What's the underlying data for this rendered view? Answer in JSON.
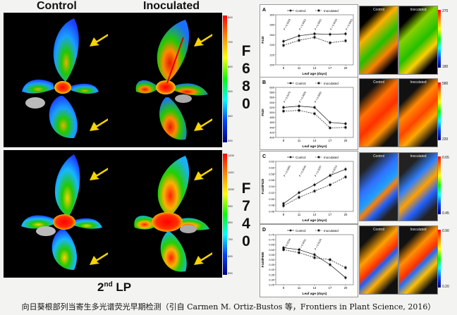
{
  "left": {
    "header_control": "Control",
    "header_inoculated": "Inoculated",
    "row1_label": [
      "F",
      "6",
      "8",
      "0"
    ],
    "row2_label": [
      "F",
      "7",
      "4",
      "0"
    ],
    "row1_ticks": [
      "800",
      "700",
      "600",
      "500",
      "400",
      "300"
    ],
    "row2_ticks": [
      "1200",
      "1100",
      "1000",
      "900",
      "800",
      "700",
      "600",
      "500"
    ],
    "footer_lp_base": "2",
    "footer_lp_sup": "nd",
    "footer_lp_rest": " LP"
  },
  "panels": [
    {
      "letter": "A",
      "ylabel": "F440",
      "xlabel": "Leaf age (days)",
      "yticks": [
        "300",
        "280",
        "260",
        "240",
        "220",
        "200"
      ],
      "xticks": [
        "8",
        "11",
        "14",
        "17",
        "20"
      ],
      "legend": [
        "Control",
        "Inoculated"
      ],
      "pvalues": [
        "P = 0.0029",
        "P = 0.0001",
        "P = 0.0001",
        "P = 0.0019",
        "P = 0.0001"
      ],
      "thumb_left": "Control",
      "thumb_right": "Inoculated",
      "cbar_top": "270",
      "cbar_bottom": "180"
    },
    {
      "letter": "B",
      "ylabel": "F520",
      "xlabel": "Leaf age (days)",
      "yticks": [
        "600",
        "580",
        "560",
        "540",
        "520",
        "500",
        "480",
        "460",
        "440",
        "420",
        "400"
      ],
      "xticks": [
        "8",
        "11",
        "14",
        "17",
        "20"
      ],
      "legend": [
        "Control",
        "Inoculated"
      ],
      "pvalues": [
        "P = 0.0476",
        "P = 0.0005",
        "P = 0.0062"
      ],
      "thumb_left": "Control",
      "thumb_right": "Inoculated",
      "cbar_top": "580",
      "cbar_bottom": "220"
    },
    {
      "letter": "C",
      "ylabel": "F440/F520",
      "xlabel": "Leaf age (days)",
      "yticks": [
        "0.62",
        "0.60",
        "0.58",
        "0.56",
        "0.54",
        "0.52",
        "0.50",
        "0.48",
        "0.46"
      ],
      "xticks": [
        "8",
        "11",
        "14",
        "17",
        "20"
      ],
      "legend": [
        "Control",
        "Inoculated"
      ],
      "pvalues": [
        "P = 0.0360",
        "P = 0.0040",
        "P = 0.0297",
        "P = 0.0213"
      ],
      "thumb_left": "Control",
      "thumb_right": "Inoculated",
      "cbar_top": "0.65",
      "cbar_bottom": "0.45"
    },
    {
      "letter": "D",
      "ylabel": "F440/F680",
      "xlabel": "Leaf age (days)",
      "yticks": [
        "0.75",
        "0.70",
        "0.65",
        "0.60",
        "0.55",
        "0.50",
        "0.45",
        "0.40",
        "0.35",
        "0.30",
        "0.25"
      ],
      "xticks": [
        "8",
        "11",
        "14",
        "17",
        "20"
      ],
      "legend": [
        "Control",
        "Inoculated"
      ],
      "pvalues": [
        "P = 0.0218",
        "P = 0.0011",
        "P = 0.0120"
      ],
      "thumb_left": "Control",
      "thumb_right": "Inoculated",
      "cbar_top": "0.90",
      "cbar_bottom": "0.20"
    }
  ],
  "chart_data": [
    {
      "type": "line",
      "x": [
        8,
        11,
        14,
        17,
        20
      ],
      "ylim": [
        200,
        300
      ],
      "series": [
        {
          "name": "Control",
          "values": [
            247,
            258,
            262,
            261,
            262
          ]
        },
        {
          "name": "Inoculated",
          "values": [
            239,
            249,
            255,
            244,
            248
          ]
        }
      ]
    },
    {
      "type": "line",
      "x": [
        8,
        11,
        14,
        17,
        20
      ],
      "ylim": [
        400,
        600
      ],
      "series": [
        {
          "name": "Control",
          "values": [
            520,
            525,
            520,
            460,
            455
          ]
        },
        {
          "name": "Inoculated",
          "values": [
            505,
            508,
            495,
            438,
            440
          ]
        }
      ]
    },
    {
      "type": "line",
      "x": [
        8,
        11,
        14,
        17,
        20
      ],
      "ylim": [
        0.46,
        0.62
      ],
      "series": [
        {
          "name": "Control",
          "values": [
            0.485,
            0.52,
            0.545,
            0.575,
            0.595
          ]
        },
        {
          "name": "Inoculated",
          "values": [
            0.478,
            0.505,
            0.525,
            0.545,
            0.57
          ]
        }
      ]
    },
    {
      "type": "line",
      "x": [
        8,
        11,
        14,
        17,
        20
      ],
      "ylim": [
        0.25,
        0.75
      ],
      "series": [
        {
          "name": "Control",
          "values": [
            0.62,
            0.6,
            0.55,
            0.45,
            0.32
          ]
        },
        {
          "name": "Inoculated",
          "values": [
            0.6,
            0.57,
            0.52,
            0.5,
            0.42
          ]
        }
      ]
    }
  ],
  "caption": "向日葵根部列当寄生多光谱荧光早期检测（引自 Carmen M. Ortiz-Bustos 等，Frontiers in Plant Science, 2016）"
}
